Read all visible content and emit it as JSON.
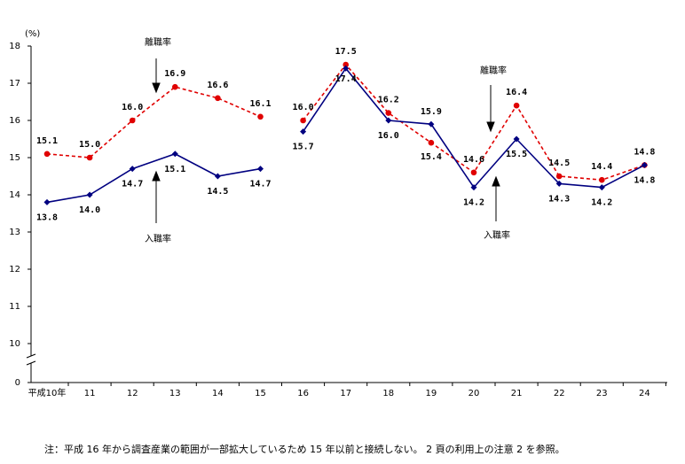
{
  "chart_data": {
    "type": "line",
    "y_unit": "(%)",
    "categories": [
      "平成10年",
      "11",
      "12",
      "13",
      "14",
      "15",
      "16",
      "17",
      "18",
      "19",
      "20",
      "21",
      "22",
      "23",
      "24"
    ],
    "series": [
      {
        "name": "離職率",
        "color": "#e00000",
        "dashed": true,
        "marker": "circle",
        "values": [
          15.1,
          15.0,
          16.0,
          16.9,
          16.6,
          16.1,
          null,
          null,
          null,
          null,
          null,
          null,
          null,
          null,
          null
        ],
        "value_labels": [
          "15.1",
          "15.0",
          "16.0",
          "16.9",
          "16.6",
          "16.1",
          null,
          null,
          null,
          null,
          null,
          null,
          null,
          null,
          null
        ]
      },
      {
        "name": "入職率",
        "color": "#000080",
        "dashed": false,
        "marker": "diamond",
        "values": [
          13.8,
          14.0,
          14.7,
          15.1,
          14.5,
          14.7,
          null,
          null,
          null,
          null,
          null,
          null,
          null,
          null,
          null
        ],
        "value_labels": [
          "13.8",
          "14.0",
          "14.7",
          "15.1",
          "14.5",
          "14.7",
          null,
          null,
          null,
          null,
          null,
          null,
          null,
          null,
          null
        ]
      },
      {
        "name": "離職率",
        "color": "#e00000",
        "dashed": true,
        "marker": "circle",
        "values": [
          null,
          null,
          null,
          null,
          null,
          null,
          16.0,
          17.5,
          16.2,
          15.4,
          14.6,
          16.4,
          14.5,
          14.4,
          14.8
        ],
        "value_labels": [
          null,
          null,
          null,
          null,
          null,
          null,
          "16.0",
          "17.5",
          "16.2",
          "15.4",
          "14.6",
          "16.4",
          "14.5",
          "14.4",
          "14.8"
        ]
      },
      {
        "name": "入職率",
        "color": "#000080",
        "dashed": false,
        "marker": "diamond",
        "values": [
          null,
          null,
          null,
          null,
          null,
          null,
          15.7,
          17.4,
          16.0,
          15.9,
          14.2,
          15.5,
          14.3,
          14.2,
          14.8
        ],
        "value_labels": [
          null,
          null,
          null,
          null,
          null,
          null,
          "15.7",
          "17.4",
          "16.0",
          "15.9",
          "14.2",
          "15.5",
          "14.3",
          "14.2",
          "14.8"
        ]
      }
    ],
    "ylim": [
      0,
      18
    ],
    "yticks": [
      0,
      10,
      11,
      12,
      13,
      14,
      15,
      16,
      17,
      18
    ],
    "y_break": [
      0,
      10
    ],
    "grid": false,
    "footnote": "注：平成 16 年から調査産業の範囲が一部拡大しているため 15 年以前と接続しない。 2 頁の利用上の注意 2 を参照。"
  }
}
